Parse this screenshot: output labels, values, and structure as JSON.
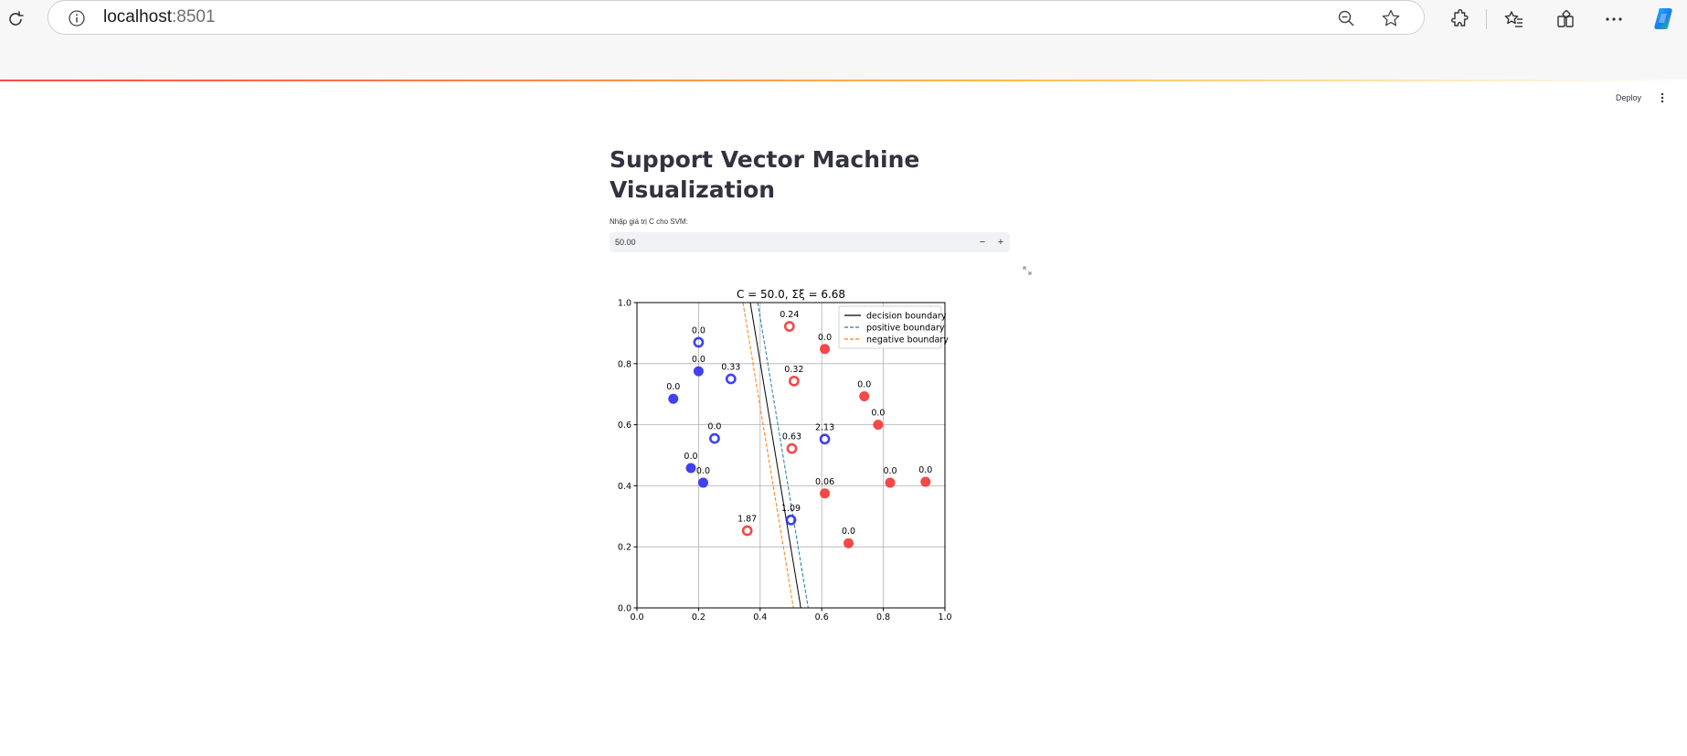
{
  "browser": {
    "url_host": "localhost",
    "url_port": ":8501",
    "icons": [
      "reload-icon",
      "info-icon",
      "zoom-out-icon",
      "favorite-add-icon",
      "extensions-icon",
      "favorites-icon",
      "collections-icon",
      "more-icon",
      "copilot-icon"
    ]
  },
  "app": {
    "deploy_label": "Deploy",
    "title": "Support Vector Machine Visualization",
    "c_input": {
      "label": "Nhập giá trị C cho SVM:",
      "value": "50.00",
      "decrement_label": "−",
      "increment_label": "+"
    },
    "colors": {
      "accent": "#ff4b4b",
      "text": "#31333f",
      "input_bg": "#f0f2f6"
    }
  },
  "chart_data": {
    "type": "scatter",
    "title": "C = 50.0,  Σξ = 6.68",
    "xlim": [
      0.0,
      1.0
    ],
    "ylim": [
      0.0,
      1.0
    ],
    "x_ticks": [
      "0.0",
      "0.2",
      "0.4",
      "0.6",
      "0.8",
      "1.0"
    ],
    "y_ticks": [
      "0.0",
      "0.2",
      "0.4",
      "0.6",
      "0.8",
      "1.0"
    ],
    "grid": true,
    "legend_position": "top-right",
    "legend": [
      {
        "label": "decision boundary",
        "color": "#000000",
        "style": "solid"
      },
      {
        "label": "positive boundary",
        "color": "#1f77b4",
        "style": "dashed"
      },
      {
        "label": "negative boundary",
        "color": "#ff7f0e",
        "style": "dashed"
      }
    ],
    "lines": [
      {
        "name": "decision boundary",
        "x": [
          0.368,
          0.532
        ],
        "y": [
          1.0,
          0.0
        ],
        "color": "#000000",
        "dash": ""
      },
      {
        "name": "positive boundary",
        "x": [
          0.392,
          0.556
        ],
        "y": [
          1.0,
          0.0
        ],
        "color": "#1f77b4",
        "dash": "4,2"
      },
      {
        "name": "negative boundary",
        "x": [
          0.344,
          0.508
        ],
        "y": [
          1.0,
          0.0
        ],
        "color": "#ff7f0e",
        "dash": "4,2"
      }
    ],
    "points": [
      {
        "x": 0.2,
        "y": 0.87,
        "class": "blue",
        "filled": false,
        "label": "0.0"
      },
      {
        "x": 0.2,
        "y": 0.775,
        "class": "blue",
        "filled": true,
        "label": "0.0"
      },
      {
        "x": 0.305,
        "y": 0.75,
        "class": "blue",
        "filled": false,
        "label": "0.33"
      },
      {
        "x": 0.118,
        "y": 0.685,
        "class": "blue",
        "filled": true,
        "label": "0.0"
      },
      {
        "x": 0.252,
        "y": 0.555,
        "class": "blue",
        "filled": false,
        "label": "0.0"
      },
      {
        "x": 0.175,
        "y": 0.458,
        "class": "blue",
        "filled": true,
        "label": "0.0"
      },
      {
        "x": 0.215,
        "y": 0.41,
        "class": "blue",
        "filled": true,
        "label": "0.0"
      },
      {
        "x": 0.61,
        "y": 0.553,
        "class": "blue",
        "filled": false,
        "label": "2.13"
      },
      {
        "x": 0.5,
        "y": 0.288,
        "class": "blue",
        "filled": false,
        "label": "1.09"
      },
      {
        "x": 0.495,
        "y": 0.922,
        "class": "red",
        "filled": false,
        "label": "0.24"
      },
      {
        "x": 0.61,
        "y": 0.848,
        "class": "red",
        "filled": true,
        "label": "0.0"
      },
      {
        "x": 0.51,
        "y": 0.743,
        "class": "red",
        "filled": false,
        "label": "0.32"
      },
      {
        "x": 0.738,
        "y": 0.693,
        "class": "red",
        "filled": true,
        "label": "0.0"
      },
      {
        "x": 0.783,
        "y": 0.6,
        "class": "red",
        "filled": true,
        "label": "0.0"
      },
      {
        "x": 0.503,
        "y": 0.522,
        "class": "red",
        "filled": false,
        "label": "0.63"
      },
      {
        "x": 0.61,
        "y": 0.375,
        "class": "red",
        "filled": true,
        "label": "0.06"
      },
      {
        "x": 0.822,
        "y": 0.41,
        "class": "red",
        "filled": true,
        "label": "0.0"
      },
      {
        "x": 0.937,
        "y": 0.413,
        "class": "red",
        "filled": true,
        "label": "0.0"
      },
      {
        "x": 0.358,
        "y": 0.253,
        "class": "red",
        "filled": false,
        "label": "1.87"
      },
      {
        "x": 0.687,
        "y": 0.212,
        "class": "red",
        "filled": true,
        "label": "0.0"
      }
    ],
    "class_colors": {
      "blue": "#2c2cf0",
      "red": "#f23535"
    }
  }
}
